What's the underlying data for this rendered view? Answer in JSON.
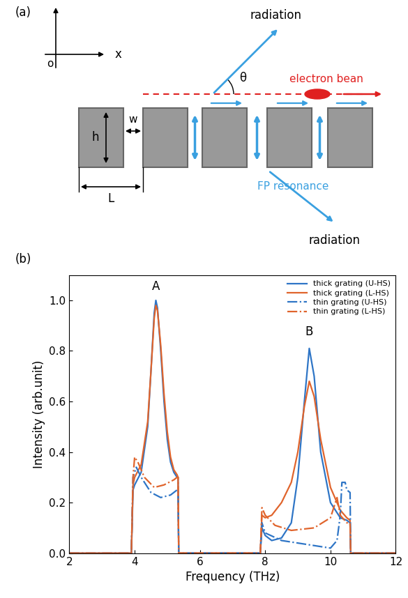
{
  "diagram": {
    "panel_labels": [
      "(a)",
      "(b)"
    ],
    "axes": {
      "origin": "o",
      "x": "x"
    },
    "dimensions": {
      "height": "h",
      "gap": "w",
      "period": "L"
    },
    "radiation": [
      "radiation",
      "radiation"
    ],
    "angle": "θ",
    "beam": "electron bean",
    "resonance": "FP resonance"
  },
  "chart_data": {
    "type": "line",
    "x_label": "Frequency (THz)",
    "y_label": "Intensity (arb.unit)",
    "xlim": [
      2,
      12
    ],
    "xticks": [
      2,
      4,
      6,
      8,
      10,
      12
    ],
    "ylim": [
      0,
      1.1
    ],
    "yticks": [
      {
        "value": 0.0,
        "label": "0.0"
      },
      {
        "value": 0.2,
        "label": "0.2"
      },
      {
        "value": 0.4,
        "label": "0.4"
      },
      {
        "value": 0.6,
        "label": "0.6"
      },
      {
        "value": 0.8,
        "label": "0.8"
      },
      {
        "value": 1.0,
        "label": "1.0"
      }
    ],
    "grid": false,
    "legend": "upper right",
    "annotations": [
      {
        "text": "A",
        "x": 4.65,
        "y": 1.03
      },
      {
        "text": "B",
        "x": 9.35,
        "y": 0.85
      }
    ],
    "series": [
      {
        "name": "thick grating (U-HS)",
        "color": "#2e75c6",
        "line_style": "solid",
        "x": [
          2,
          3.9,
          3.95,
          4.0,
          4.2,
          4.4,
          4.5,
          4.6,
          4.65,
          4.7,
          4.8,
          4.9,
          5.0,
          5.1,
          5.2,
          5.3,
          5.33,
          5.35,
          7.85,
          7.9,
          8.0,
          8.2,
          8.5,
          8.8,
          9.0,
          9.2,
          9.35,
          9.5,
          9.7,
          10.0,
          10.3,
          10.5,
          10.6,
          10.62,
          12
        ],
        "values": [
          0,
          0,
          0.25,
          0.27,
          0.32,
          0.5,
          0.72,
          0.95,
          1.0,
          0.97,
          0.8,
          0.6,
          0.45,
          0.36,
          0.32,
          0.3,
          0.3,
          0,
          0,
          0.1,
          0.07,
          0.05,
          0.06,
          0.12,
          0.3,
          0.6,
          0.81,
          0.7,
          0.4,
          0.2,
          0.14,
          0.13,
          0.12,
          0,
          0
        ]
      },
      {
        "name": "thick grating (L-HS)",
        "color": "#e0642c",
        "line_style": "solid",
        "x": [
          2,
          3.9,
          3.95,
          4.0,
          4.2,
          4.4,
          4.5,
          4.6,
          4.65,
          4.7,
          4.8,
          4.9,
          5.0,
          5.1,
          5.2,
          5.3,
          5.33,
          5.35,
          7.85,
          7.9,
          8.0,
          8.2,
          8.5,
          8.8,
          9.0,
          9.2,
          9.35,
          9.5,
          9.7,
          10.0,
          10.3,
          10.5,
          10.6,
          10.62,
          12
        ],
        "values": [
          0,
          0,
          0.27,
          0.3,
          0.35,
          0.52,
          0.72,
          0.93,
          0.98,
          0.96,
          0.82,
          0.63,
          0.48,
          0.38,
          0.33,
          0.31,
          0.3,
          0,
          0,
          0.15,
          0.14,
          0.15,
          0.2,
          0.28,
          0.4,
          0.58,
          0.68,
          0.62,
          0.45,
          0.26,
          0.17,
          0.14,
          0.13,
          0,
          0
        ]
      },
      {
        "name": "thin grating (U-HS)",
        "color": "#2e75c6",
        "line_style": "dashdot",
        "x": [
          2,
          3.9,
          3.95,
          4.05,
          4.2,
          4.5,
          4.8,
          5.1,
          5.3,
          5.33,
          5.35,
          7.85,
          7.9,
          8.0,
          8.5,
          9.0,
          9.5,
          10.0,
          10.2,
          10.3,
          10.35,
          10.45,
          10.5,
          10.6,
          10.62,
          12
        ],
        "values": [
          0,
          0,
          0.3,
          0.34,
          0.3,
          0.24,
          0.22,
          0.23,
          0.25,
          0.25,
          0,
          0,
          0.12,
          0.08,
          0.05,
          0.04,
          0.03,
          0.02,
          0.05,
          0.15,
          0.28,
          0.28,
          0.25,
          0.24,
          0,
          0
        ]
      },
      {
        "name": "thin grating (L-HS)",
        "color": "#e0642c",
        "line_style": "dashdot",
        "x": [
          2,
          3.9,
          3.95,
          4.0,
          4.1,
          4.3,
          4.6,
          4.9,
          5.2,
          5.3,
          5.33,
          5.35,
          7.85,
          7.9,
          8.0,
          8.3,
          8.8,
          9.5,
          10.0,
          10.2,
          10.3,
          10.5,
          10.6,
          10.62,
          12
        ],
        "values": [
          0,
          0,
          0.3,
          0.38,
          0.36,
          0.3,
          0.26,
          0.27,
          0.29,
          0.3,
          0.3,
          0,
          0,
          0.18,
          0.15,
          0.11,
          0.09,
          0.1,
          0.14,
          0.22,
          0.15,
          0.12,
          0.12,
          0,
          0
        ]
      }
    ]
  }
}
